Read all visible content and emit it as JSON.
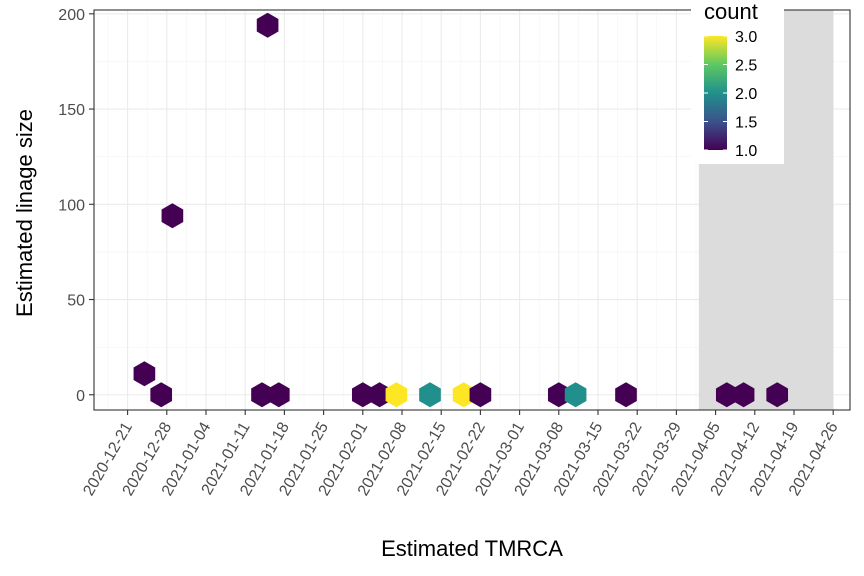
{
  "chart_data": {
    "type": "hexbin",
    "xlabel": "Estimated TMRCA",
    "ylabel": "Estimated linage size",
    "x_ticks": [
      "2020-12-21",
      "2020-12-28",
      "2021-01-04",
      "2021-01-11",
      "2021-01-18",
      "2021-01-25",
      "2021-02-01",
      "2021-02-08",
      "2021-02-15",
      "2021-02-22",
      "2021-03-01",
      "2021-03-08",
      "2021-03-15",
      "2021-03-22",
      "2021-03-29",
      "2021-04-05",
      "2021-04-12",
      "2021-04-19",
      "2021-04-26"
    ],
    "y_ticks": [
      0,
      50,
      100,
      150,
      200
    ],
    "xlim": [
      "2020-12-15",
      "2021-04-29"
    ],
    "ylim": [
      -8,
      202
    ],
    "grid": true,
    "shaded_region": {
      "start": "2021-04-02",
      "end": "2021-04-26",
      "color": "#dcdcdc"
    },
    "points": [
      {
        "x": "2020-12-24",
        "y": 11,
        "count": 1
      },
      {
        "x": "2020-12-27",
        "y": 0,
        "count": 1
      },
      {
        "x": "2020-12-29",
        "y": 94,
        "count": 1
      },
      {
        "x": "2021-01-14",
        "y": 0,
        "count": 1
      },
      {
        "x": "2021-01-15",
        "y": 194,
        "count": 1
      },
      {
        "x": "2021-01-17",
        "y": 0,
        "count": 1
      },
      {
        "x": "2021-02-01",
        "y": 0,
        "count": 1
      },
      {
        "x": "2021-02-04",
        "y": 0,
        "count": 1
      },
      {
        "x": "2021-02-07",
        "y": 0,
        "count": 3
      },
      {
        "x": "2021-02-13",
        "y": 0,
        "count": 2
      },
      {
        "x": "2021-02-19",
        "y": 0,
        "count": 3
      },
      {
        "x": "2021-02-22",
        "y": 0,
        "count": 1
      },
      {
        "x": "2021-03-08",
        "y": 0,
        "count": 1
      },
      {
        "x": "2021-03-11",
        "y": 0,
        "count": 2
      },
      {
        "x": "2021-03-20",
        "y": 0,
        "count": 1
      },
      {
        "x": "2021-04-07",
        "y": 0,
        "count": 1
      },
      {
        "x": "2021-04-10",
        "y": 0,
        "count": 1
      },
      {
        "x": "2021-04-16",
        "y": 0,
        "count": 1
      }
    ],
    "legend": {
      "title": "count",
      "placement": "top-right",
      "labels": [
        "3.0",
        "2.5",
        "2.0",
        "1.5",
        "1.0"
      ],
      "range": [
        1,
        3
      ],
      "colors": [
        "#440154",
        "#3b528b",
        "#21908c",
        "#5dc863",
        "#fde725"
      ]
    }
  }
}
